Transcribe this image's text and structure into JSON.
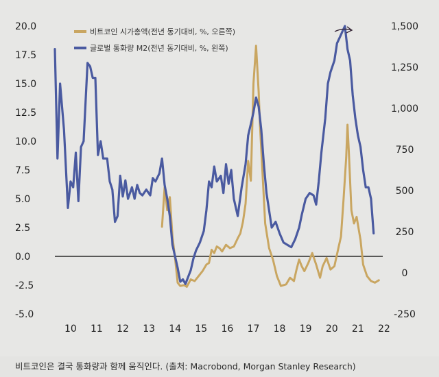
{
  "caption": "비트코인은 결국 통화량과 함께 움직인다. (출처: Macrobond, Morgan Stanley Research)",
  "chart_data": {
    "type": "line",
    "title": "",
    "legend_position": "top-left",
    "grid": false,
    "x_ticks": [
      "10",
      "11",
      "12",
      "13",
      "14",
      "15",
      "16",
      "17",
      "18",
      "19",
      "20",
      "21",
      "22"
    ],
    "x_range": [
      2009.75,
      2022.3
    ],
    "left_axis": {
      "ylim": [
        -5,
        20
      ],
      "ticks": [
        "20.0",
        "17.5",
        "15.0",
        "12.5",
        "10.0",
        "7.5",
        "5.0",
        "2.5",
        "0.0",
        "-2.5",
        "-5.0"
      ]
    },
    "right_axis": {
      "ylim": [
        -250,
        1500
      ],
      "ticks": [
        "1,500",
        "1,250",
        "1,000",
        "750",
        "500",
        "250",
        "0",
        "-250"
      ]
    },
    "zero_line": 0,
    "series": [
      {
        "name": "비트코인 시가총액(전년 동기대비, %, 오른쪽)",
        "color": "#c9a661",
        "axis": "right",
        "points": [
          [
            2013.85,
            280
          ],
          [
            2013.95,
            520
          ],
          [
            2014.05,
            380
          ],
          [
            2014.15,
            460
          ],
          [
            2014.25,
            220
          ],
          [
            2014.35,
            90
          ],
          [
            2014.45,
            -60
          ],
          [
            2014.55,
            -80
          ],
          [
            2014.7,
            -75
          ],
          [
            2014.8,
            -85
          ],
          [
            2014.95,
            -40
          ],
          [
            2015.1,
            -50
          ],
          [
            2015.25,
            -20
          ],
          [
            2015.4,
            10
          ],
          [
            2015.55,
            50
          ],
          [
            2015.65,
            60
          ],
          [
            2015.75,
            140
          ],
          [
            2015.85,
            120
          ],
          [
            2015.95,
            160
          ],
          [
            2016.05,
            150
          ],
          [
            2016.15,
            130
          ],
          [
            2016.3,
            170
          ],
          [
            2016.45,
            150
          ],
          [
            2016.6,
            160
          ],
          [
            2016.75,
            210
          ],
          [
            2016.85,
            240
          ],
          [
            2016.95,
            310
          ],
          [
            2017.05,
            420
          ],
          [
            2017.15,
            680
          ],
          [
            2017.25,
            560
          ],
          [
            2017.35,
            1150
          ],
          [
            2017.45,
            1380
          ],
          [
            2017.55,
            1100
          ],
          [
            2017.6,
            900
          ],
          [
            2017.7,
            600
          ],
          [
            2017.8,
            300
          ],
          [
            2017.95,
            150
          ],
          [
            2018.1,
            80
          ],
          [
            2018.25,
            -20
          ],
          [
            2018.4,
            -80
          ],
          [
            2018.6,
            -70
          ],
          [
            2018.75,
            -30
          ],
          [
            2018.9,
            -50
          ],
          [
            2019.0,
            20
          ],
          [
            2019.1,
            80
          ],
          [
            2019.2,
            40
          ],
          [
            2019.3,
            10
          ],
          [
            2019.45,
            60
          ],
          [
            2019.6,
            120
          ],
          [
            2019.75,
            50
          ],
          [
            2019.9,
            -30
          ],
          [
            2020.0,
            40
          ],
          [
            2020.15,
            90
          ],
          [
            2020.3,
            20
          ],
          [
            2020.45,
            40
          ],
          [
            2020.6,
            150
          ],
          [
            2020.7,
            220
          ],
          [
            2020.8,
            450
          ],
          [
            2020.9,
            700
          ],
          [
            2020.95,
            900
          ],
          [
            2021.0,
            740
          ],
          [
            2021.1,
            380
          ],
          [
            2021.2,
            300
          ],
          [
            2021.3,
            340
          ],
          [
            2021.45,
            200
          ],
          [
            2021.55,
            50
          ],
          [
            2021.7,
            -20
          ],
          [
            2021.85,
            -50
          ],
          [
            2022.0,
            -60
          ],
          [
            2022.15,
            -45
          ]
        ]
      },
      {
        "name": "글로벌 통화량 M2(전년 동기대비, %, 왼쪽)",
        "color": "#4a5aa0",
        "axis": "left",
        "points": [
          [
            2009.75,
            18
          ],
          [
            2009.85,
            8.5
          ],
          [
            2009.95,
            15
          ],
          [
            2010.1,
            11
          ],
          [
            2010.25,
            4.2
          ],
          [
            2010.35,
            6.5
          ],
          [
            2010.45,
            6
          ],
          [
            2010.55,
            9
          ],
          [
            2010.65,
            4.8
          ],
          [
            2010.75,
            9.5
          ],
          [
            2010.85,
            10
          ],
          [
            2011.0,
            16.8
          ],
          [
            2011.1,
            16.5
          ],
          [
            2011.2,
            15.5
          ],
          [
            2011.3,
            15.5
          ],
          [
            2011.4,
            8.8
          ],
          [
            2011.5,
            10
          ],
          [
            2011.6,
            8.5
          ],
          [
            2011.75,
            8.5
          ],
          [
            2011.85,
            6.5
          ],
          [
            2011.95,
            5.8
          ],
          [
            2012.05,
            3
          ],
          [
            2012.15,
            3.5
          ],
          [
            2012.25,
            7
          ],
          [
            2012.35,
            5.2
          ],
          [
            2012.45,
            6.6
          ],
          [
            2012.55,
            5
          ],
          [
            2012.7,
            6
          ],
          [
            2012.8,
            5
          ],
          [
            2012.9,
            6.2
          ],
          [
            2013.0,
            5.5
          ],
          [
            2013.1,
            5.3
          ],
          [
            2013.25,
            5.8
          ],
          [
            2013.4,
            5.3
          ],
          [
            2013.5,
            6.8
          ],
          [
            2013.6,
            6.5
          ],
          [
            2013.75,
            7.2
          ],
          [
            2013.85,
            8.5
          ],
          [
            2013.95,
            6.2
          ],
          [
            2014.05,
            5
          ],
          [
            2014.15,
            3.5
          ],
          [
            2014.25,
            1
          ],
          [
            2014.35,
            0
          ],
          [
            2014.45,
            -1
          ],
          [
            2014.55,
            -2.2
          ],
          [
            2014.65,
            -2
          ],
          [
            2014.75,
            -2.4
          ],
          [
            2014.85,
            -1.8
          ],
          [
            2014.95,
            -1.2
          ],
          [
            2015.05,
            -0.2
          ],
          [
            2015.15,
            0.5
          ],
          [
            2015.3,
            1.2
          ],
          [
            2015.45,
            2.2
          ],
          [
            2015.55,
            4
          ],
          [
            2015.65,
            6.5
          ],
          [
            2015.75,
            6
          ],
          [
            2015.85,
            7.8
          ],
          [
            2015.95,
            6.5
          ],
          [
            2016.1,
            7
          ],
          [
            2016.2,
            5.5
          ],
          [
            2016.3,
            8
          ],
          [
            2016.4,
            6.3
          ],
          [
            2016.5,
            7.5
          ],
          [
            2016.6,
            5
          ],
          [
            2016.75,
            3.5
          ],
          [
            2016.9,
            6
          ],
          [
            2017.05,
            8
          ],
          [
            2017.15,
            10.5
          ],
          [
            2017.25,
            11.5
          ],
          [
            2017.35,
            12.5
          ],
          [
            2017.45,
            13.8
          ],
          [
            2017.55,
            13
          ],
          [
            2017.65,
            11
          ],
          [
            2017.75,
            8
          ],
          [
            2017.85,
            5.5
          ],
          [
            2017.95,
            4
          ],
          [
            2018.05,
            2.5
          ],
          [
            2018.2,
            3
          ],
          [
            2018.35,
            2
          ],
          [
            2018.5,
            1.2
          ],
          [
            2018.65,
            1
          ],
          [
            2018.8,
            0.8
          ],
          [
            2018.95,
            1.5
          ],
          [
            2019.1,
            2.5
          ],
          [
            2019.2,
            3.6
          ],
          [
            2019.35,
            5
          ],
          [
            2019.5,
            5.5
          ],
          [
            2019.65,
            5.3
          ],
          [
            2019.75,
            4.5
          ],
          [
            2019.85,
            6.5
          ],
          [
            2019.95,
            9
          ],
          [
            2020.1,
            12
          ],
          [
            2020.2,
            15
          ],
          [
            2020.3,
            16
          ],
          [
            2020.45,
            17
          ],
          [
            2020.55,
            18.5
          ],
          [
            2020.65,
            19
          ],
          [
            2020.75,
            19.5
          ],
          [
            2020.85,
            20
          ],
          [
            2020.95,
            18
          ],
          [
            2021.05,
            17
          ],
          [
            2021.15,
            14
          ],
          [
            2021.25,
            12
          ],
          [
            2021.35,
            10.5
          ],
          [
            2021.45,
            9.5
          ],
          [
            2021.55,
            7.5
          ],
          [
            2021.65,
            6
          ],
          [
            2021.75,
            6
          ],
          [
            2021.85,
            5
          ],
          [
            2021.95,
            2
          ]
        ]
      }
    ]
  }
}
